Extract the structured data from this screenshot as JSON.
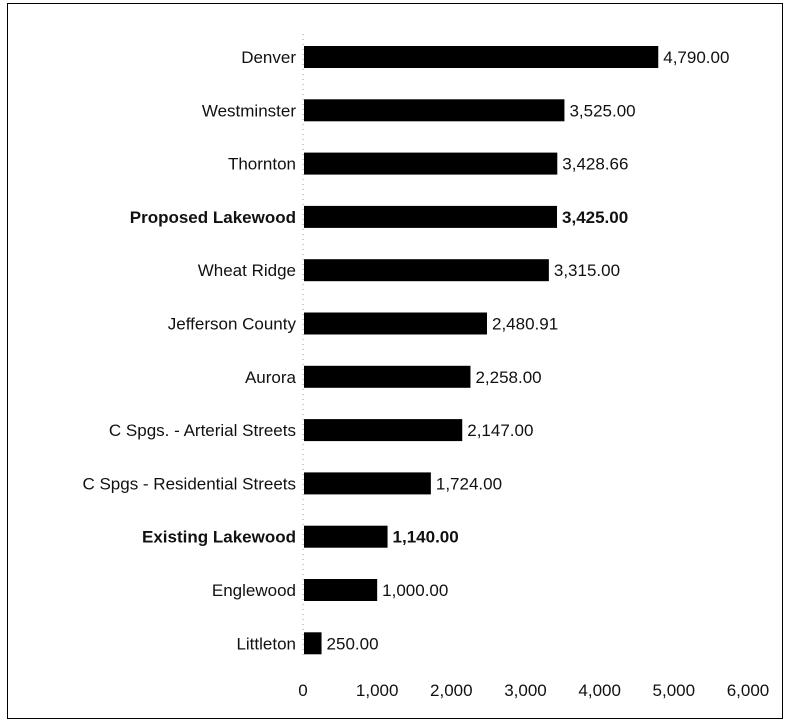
{
  "chart_data": {
    "type": "bar",
    "orientation": "horizontal",
    "categories": [
      "Denver",
      "Westminster",
      "Thornton",
      "Proposed Lakewood",
      "Wheat Ridge",
      "Jefferson County",
      "Aurora",
      "C Spgs. - Arterial Streets",
      "C Spgs - Residential Streets",
      "Existing Lakewood",
      "Englewood",
      "Littleton"
    ],
    "values": [
      4790,
      3525,
      3428.66,
      3425,
      3315,
      2480.91,
      2258,
      2147,
      1724,
      1140,
      1000,
      250
    ],
    "value_labels": [
      "4,790.00",
      "3,525.00",
      "3,428.66",
      "3,425.00",
      "3,315.00",
      "2,480.91",
      "2,258.00",
      "2,147.00",
      "1,724.00",
      "1,140.00",
      "1,000.00",
      "250.00"
    ],
    "bold_categories": [
      "Proposed Lakewood",
      "Existing Lakewood"
    ],
    "x_ticks": [
      0,
      1000,
      2000,
      3000,
      4000,
      5000,
      6000
    ],
    "x_tick_labels": [
      "0",
      "1,000",
      "2,000",
      "3,000",
      "4,000",
      "5,000",
      "6,000"
    ],
    "xlim": [
      0,
      6000
    ],
    "bar_color": "#000000",
    "grid": false,
    "legend": "none",
    "title": "",
    "xlabel": "",
    "ylabel": ""
  }
}
